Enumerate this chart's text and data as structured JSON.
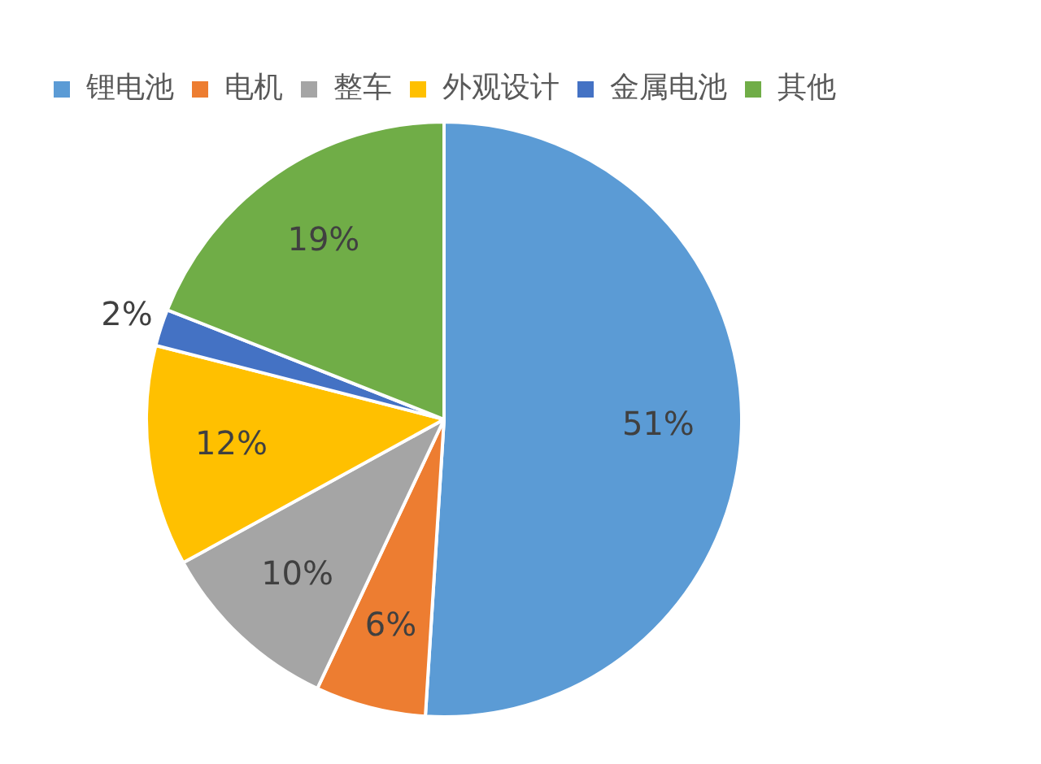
{
  "chart_data": {
    "type": "pie",
    "categories": [
      "锂电池",
      "电机",
      "整车",
      "外观设计",
      "金属电池",
      "其他"
    ],
    "values": [
      51,
      6,
      10,
      12,
      2,
      19
    ],
    "colors": [
      "#5b9bd5",
      "#ed7d31",
      "#a5a5a5",
      "#ffc000",
      "#4472c4",
      "#70ad47"
    ],
    "value_labels": [
      "51%",
      "6%",
      "10%",
      "12%",
      "2%",
      "19%"
    ],
    "legend": "top"
  }
}
